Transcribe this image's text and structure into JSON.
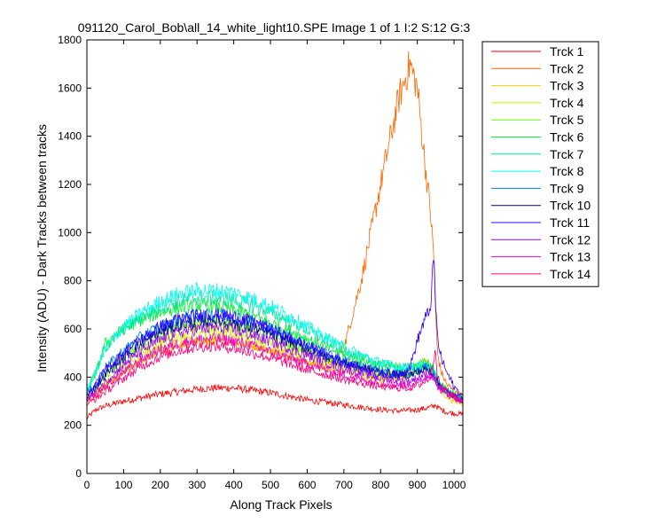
{
  "chart_data": {
    "type": "line",
    "title": "091120_Carol_Bob\\all_14_white_light10.SPE  Image 1 of 1  I:2  S:12  G:3",
    "xlabel": "Along Track Pixels",
    "ylabel": "Intensity (ADU) - Dark Tracks between tracks",
    "xlim": [
      0,
      1024
    ],
    "ylim": [
      0,
      1800
    ],
    "xticks": [
      0,
      100,
      200,
      300,
      400,
      500,
      600,
      700,
      800,
      900,
      1000
    ],
    "yticks": [
      0,
      200,
      400,
      600,
      800,
      1000,
      1200,
      1400,
      1600,
      1800
    ],
    "x": [
      0,
      25,
      50,
      100,
      150,
      200,
      250,
      300,
      350,
      400,
      450,
      500,
      550,
      600,
      650,
      700,
      750,
      800,
      850,
      880,
      900,
      920,
      935,
      945,
      950,
      955,
      965,
      980,
      1000,
      1024
    ],
    "legend_position": "outside-right",
    "grid": false,
    "series": [
      {
        "name": "Trck 1",
        "color": "#ff0000",
        "values": [
          230,
          265,
          280,
          300,
          315,
          330,
          340,
          350,
          355,
          355,
          345,
          335,
          320,
          305,
          295,
          285,
          275,
          265,
          260,
          262,
          265,
          270,
          275,
          280,
          285,
          275,
          265,
          255,
          250,
          245
        ]
      },
      {
        "name": "Trck 2",
        "color": "#ff6600",
        "values": [
          310,
          335,
          365,
          420,
          470,
          510,
          535,
          545,
          550,
          545,
          530,
          510,
          485,
          460,
          440,
          520,
          820,
          1200,
          1560,
          1700,
          1600,
          1300,
          1100,
          900,
          650,
          500,
          420,
          370,
          340,
          320
        ]
      },
      {
        "name": "Trck 3",
        "color": "#ffcc00",
        "values": [
          300,
          320,
          360,
          420,
          470,
          510,
          540,
          555,
          560,
          555,
          540,
          515,
          490,
          465,
          440,
          420,
          400,
          390,
          390,
          410,
          450,
          470,
          440,
          400,
          380,
          360,
          340,
          320,
          300,
          290
        ]
      },
      {
        "name": "Trck 4",
        "color": "#ccee00",
        "values": [
          310,
          340,
          380,
          440,
          500,
          545,
          575,
          590,
          595,
          590,
          570,
          545,
          515,
          490,
          465,
          445,
          420,
          405,
          400,
          410,
          430,
          450,
          440,
          420,
          400,
          380,
          360,
          340,
          320,
          300
        ]
      },
      {
        "name": "Trck 5",
        "color": "#66ff00",
        "values": [
          320,
          360,
          410,
          480,
          540,
          580,
          610,
          625,
          630,
          620,
          600,
          570,
          540,
          510,
          480,
          455,
          430,
          415,
          410,
          415,
          430,
          445,
          440,
          420,
          400,
          380,
          360,
          340,
          320,
          305
        ]
      },
      {
        "name": "Trck 6",
        "color": "#00ee33",
        "values": [
          340,
          420,
          540,
          600,
          640,
          670,
          690,
          700,
          695,
          680,
          655,
          625,
          595,
          560,
          525,
          495,
          470,
          450,
          440,
          440,
          450,
          460,
          450,
          430,
          410,
          390,
          370,
          350,
          330,
          310
        ]
      },
      {
        "name": "Trck 7",
        "color": "#00e8a0",
        "values": [
          350,
          420,
          520,
          600,
          650,
          690,
          715,
          730,
          730,
          720,
          700,
          670,
          635,
          595,
          555,
          515,
          480,
          455,
          440,
          440,
          445,
          450,
          440,
          420,
          400,
          380,
          360,
          340,
          320,
          305
        ]
      },
      {
        "name": "Trck 8",
        "color": "#00ffee",
        "values": [
          350,
          420,
          520,
          610,
          670,
          715,
          745,
          760,
          760,
          750,
          725,
          695,
          655,
          610,
          565,
          525,
          490,
          460,
          440,
          440,
          445,
          450,
          440,
          420,
          400,
          380,
          360,
          340,
          320,
          305
        ]
      },
      {
        "name": "Trck 9",
        "color": "#0077ff",
        "values": [
          330,
          380,
          440,
          510,
          570,
          610,
          640,
          655,
          660,
          650,
          630,
          600,
          570,
          535,
          500,
          470,
          445,
          425,
          415,
          415,
          425,
          440,
          440,
          420,
          400,
          380,
          360,
          340,
          320,
          305
        ]
      },
      {
        "name": "Trck 10",
        "color": "#000099",
        "values": [
          320,
          360,
          410,
          480,
          540,
          585,
          615,
          630,
          635,
          625,
          605,
          580,
          550,
          515,
          485,
          460,
          440,
          420,
          410,
          410,
          420,
          430,
          425,
          410,
          395,
          380,
          360,
          340,
          320,
          305
        ]
      },
      {
        "name": "Trck 11",
        "color": "#3300ff",
        "values": [
          320,
          370,
          430,
          500,
          560,
          610,
          640,
          655,
          660,
          650,
          630,
          600,
          565,
          530,
          495,
          460,
          435,
          410,
          410,
          440,
          550,
          640,
          680,
          900,
          700,
          560,
          480,
          420,
          360,
          320
        ]
      },
      {
        "name": "Trck 12",
        "color": "#9900ff",
        "values": [
          310,
          340,
          380,
          450,
          510,
          555,
          585,
          600,
          605,
          595,
          575,
          550,
          520,
          490,
          460,
          435,
          415,
          395,
          385,
          385,
          395,
          410,
          420,
          400,
          380,
          365,
          350,
          335,
          320,
          305
        ]
      },
      {
        "name": "Trck 13",
        "color": "#ee00dd",
        "values": [
          300,
          330,
          360,
          420,
          475,
          515,
          540,
          555,
          560,
          550,
          530,
          505,
          480,
          455,
          430,
          410,
          390,
          375,
          370,
          370,
          380,
          395,
          410,
          400,
          380,
          360,
          345,
          330,
          315,
          300
        ]
      },
      {
        "name": "Trck 14",
        "color": "#ff0077",
        "values": [
          290,
          310,
          340,
          395,
          445,
          485,
          510,
          525,
          530,
          520,
          500,
          480,
          455,
          430,
          410,
          390,
          375,
          360,
          355,
          355,
          365,
          380,
          400,
          480,
          520,
          400,
          360,
          340,
          320,
          300
        ]
      }
    ]
  }
}
